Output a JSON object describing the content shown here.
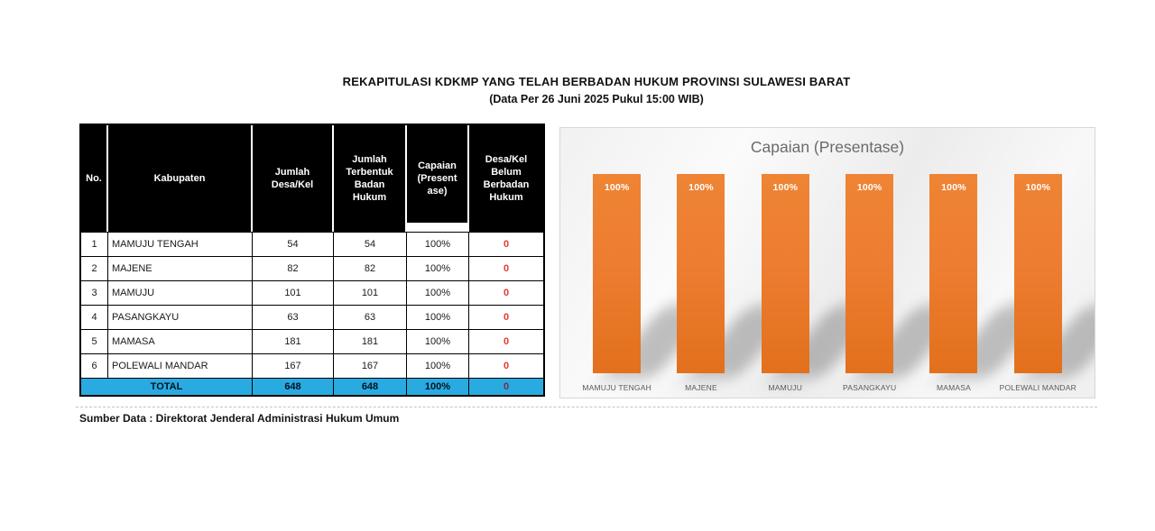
{
  "title": "REKAPITULASI KDKMP YANG TELAH BERBADAN HUKUM PROVINSI SULAWESI BARAT",
  "subtitle": "(Data Per 26 Juni 2025 Pukul 15:00 WIB)",
  "table": {
    "headers": [
      "No.",
      "Kabupaten",
      "Jumlah\nDesa/Kel",
      "Jumlah\nTerbentuk\nBadan\nHukum",
      "Capaian\n(Present\nase)",
      "Desa/Kel\nBelum\nBerbadan\nHukum"
    ],
    "rows": [
      {
        "no": "1",
        "kabupaten": "MAMUJU TENGAH",
        "jumlah_desa_kel": "54",
        "jumlah_terbentuk": "54",
        "capaian": "100%",
        "belum": "0"
      },
      {
        "no": "2",
        "kabupaten": "MAJENE",
        "jumlah_desa_kel": "82",
        "jumlah_terbentuk": "82",
        "capaian": "100%",
        "belum": "0"
      },
      {
        "no": "3",
        "kabupaten": "MAMUJU",
        "jumlah_desa_kel": "101",
        "jumlah_terbentuk": "101",
        "capaian": "100%",
        "belum": "0"
      },
      {
        "no": "4",
        "kabupaten": "PASANGKAYU",
        "jumlah_desa_kel": "63",
        "jumlah_terbentuk": "63",
        "capaian": "100%",
        "belum": "0"
      },
      {
        "no": "5",
        "kabupaten": "MAMASA",
        "jumlah_desa_kel": "181",
        "jumlah_terbentuk": "181",
        "capaian": "100%",
        "belum": "0"
      },
      {
        "no": "6",
        "kabupaten": "POLEWALI MANDAR",
        "jumlah_desa_kel": "167",
        "jumlah_terbentuk": "167",
        "capaian": "100%",
        "belum": "0"
      }
    ],
    "total": {
      "label": "TOTAL",
      "jumlah_desa_kel": "648",
      "jumlah_terbentuk": "648",
      "capaian": "100%",
      "belum": "0"
    }
  },
  "source": "Sumber Data : Direktorat Jenderal Administrasi Hukum Umum",
  "chart_data": {
    "type": "bar",
    "title": "Capaian (Presentase)",
    "categories": [
      "MAMUJU TENGAH",
      "MAJENE",
      "MAMUJU",
      "PASANGKAYU",
      "MAMASA",
      "POLEWALI MANDAR"
    ],
    "values": [
      100,
      100,
      100,
      100,
      100,
      100
    ],
    "value_labels": [
      "100%",
      "100%",
      "100%",
      "100%",
      "100%",
      "100%"
    ],
    "xlabel": "",
    "ylabel": "",
    "ylim": [
      0,
      100
    ],
    "grid": false,
    "legend": "none",
    "bar_label_position": "inside-top"
  },
  "colors": {
    "header_bg": "#000000",
    "total_bg": "#29abe2",
    "zero_red": "#e03a30",
    "total_zero": "#7e2b45",
    "bar_orange": "#ed7d31",
    "chart_title_gray": "#6b6b6b"
  }
}
